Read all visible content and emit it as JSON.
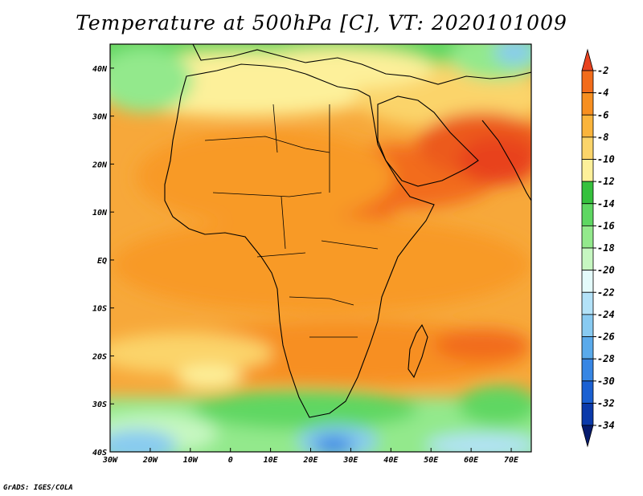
{
  "title": "Temperature at 500hPa [C], VT: 2020101009",
  "footer": "GrADS: IGES/COLA",
  "map": {
    "lon_labels": [
      "30W",
      "20W",
      "10W",
      "0",
      "10E",
      "20E",
      "30E",
      "40E",
      "50E",
      "60E",
      "70E"
    ],
    "lat_labels": [
      "40N",
      "30N",
      "20N",
      "10N",
      "EQ",
      "10S",
      "20S",
      "30S",
      "40S"
    ],
    "lon_range": [
      -30,
      75
    ],
    "lat_range": [
      -40,
      45
    ]
  },
  "colorbar": {
    "labels": [
      "-2",
      "-4",
      "-6",
      "-8",
      "-10",
      "-12",
      "-14",
      "-16",
      "-18",
      "-20",
      "-22",
      "-24",
      "-26",
      "-28",
      "-30",
      "-32",
      "-34"
    ],
    "colors": [
      "#e8421e",
      "#f26c1a",
      "#f78f20",
      "#fab43c",
      "#fbd46a",
      "#fdf09a",
      "#35c13d",
      "#5ed762",
      "#93e98c",
      "#c6f7c1",
      "#e4fbfb",
      "#b3e2f8",
      "#88caf1",
      "#5aaaeb",
      "#3786e4",
      "#1a60d2",
      "#0b3aaa",
      "#061b6e"
    ]
  }
}
